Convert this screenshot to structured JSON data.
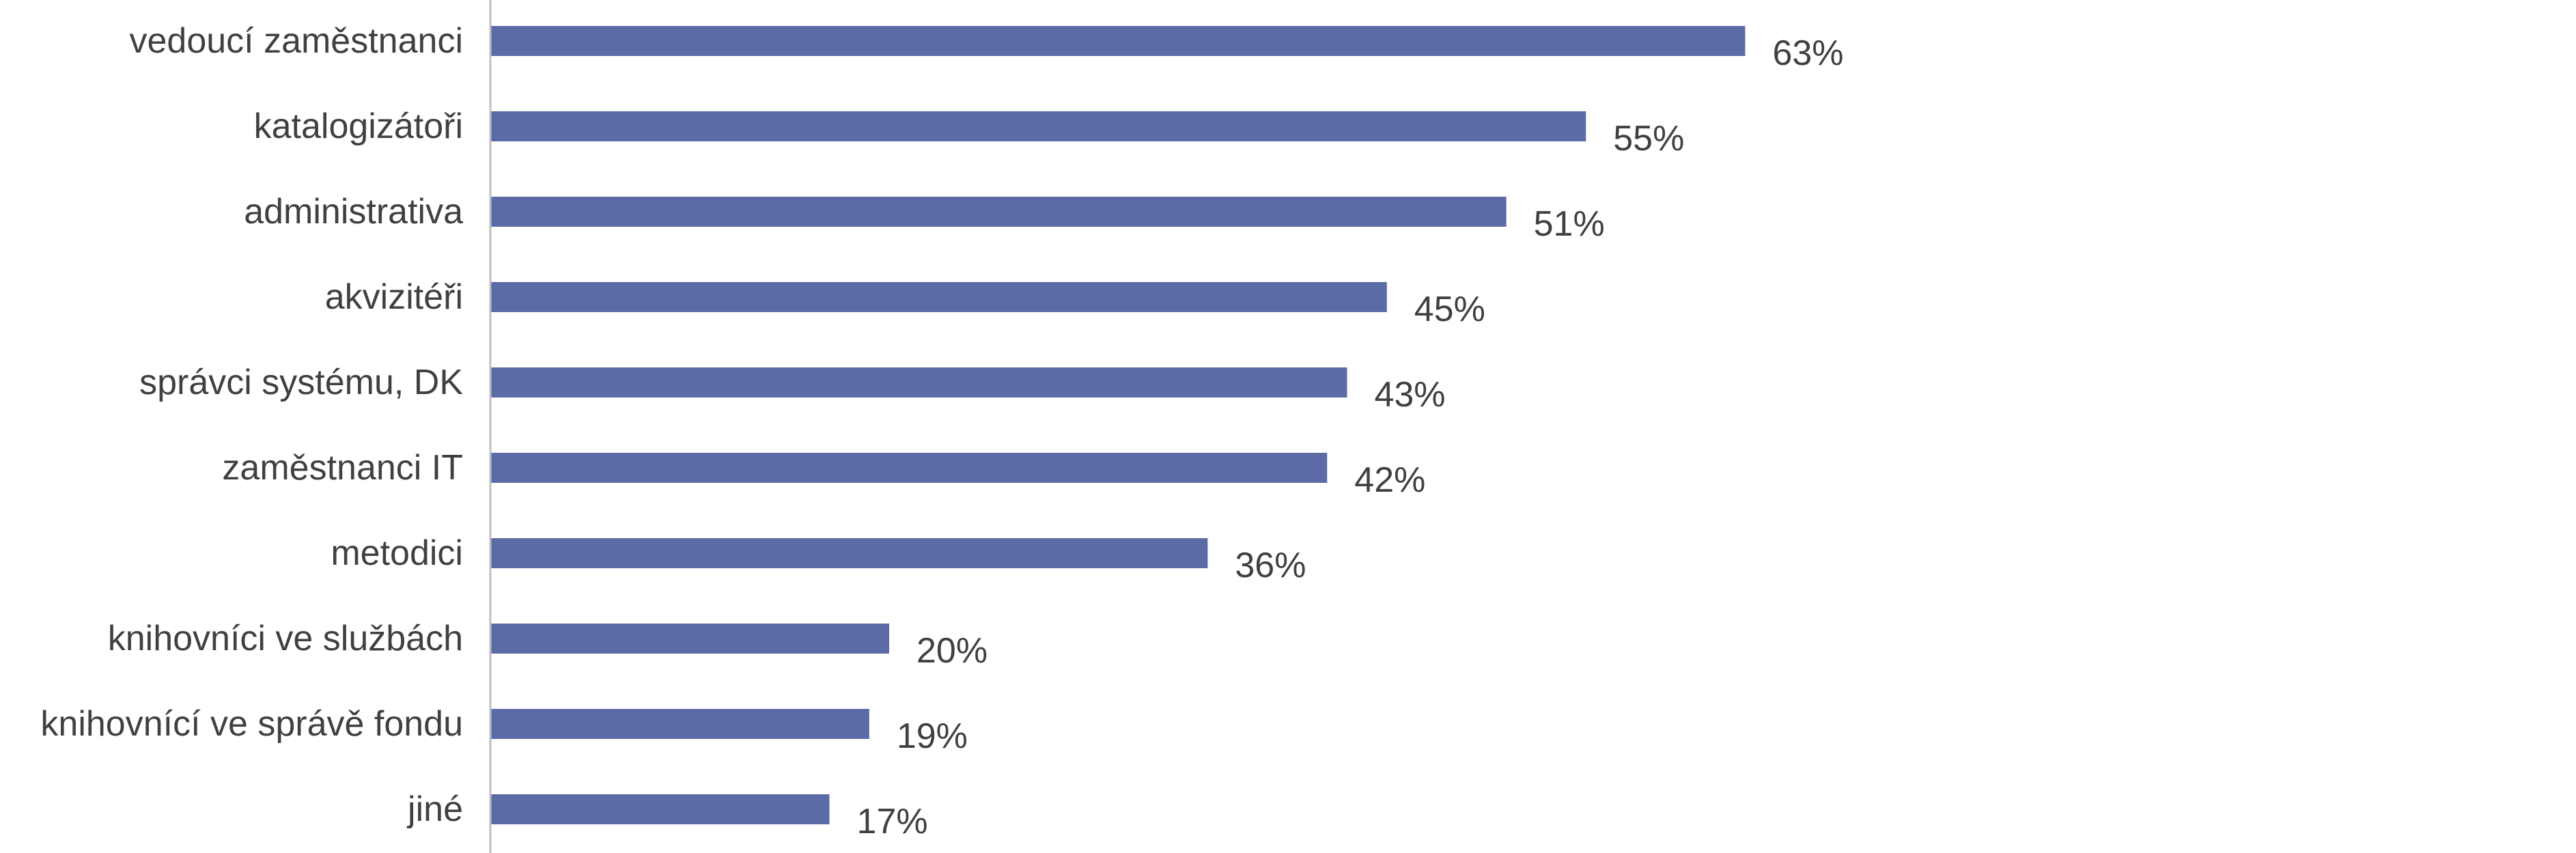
{
  "chart_data": {
    "type": "bar",
    "orientation": "horizontal",
    "categories": [
      "vedoucí zaměstnanci",
      "katalogizátoři",
      "administrativa",
      "akvizitéři",
      "správci systému, DK",
      "zaměstnanci IT",
      "metodici",
      "knihovníci ve službách",
      "knihovnící ve správě fondu",
      "jiné"
    ],
    "values": [
      63,
      55,
      51,
      45,
      43,
      42,
      36,
      20,
      19,
      17
    ],
    "value_labels": [
      "63%",
      "55%",
      "51%",
      "45%",
      "43%",
      "42%",
      "36%",
      "20%",
      "19%",
      "17%"
    ],
    "title": "",
    "xlabel": "",
    "ylabel": "",
    "xlim": [
      0,
      100
    ],
    "grid": false,
    "legend": "none",
    "bar_color": "#5b6ba6",
    "axis_color": "#bfbfbf"
  }
}
